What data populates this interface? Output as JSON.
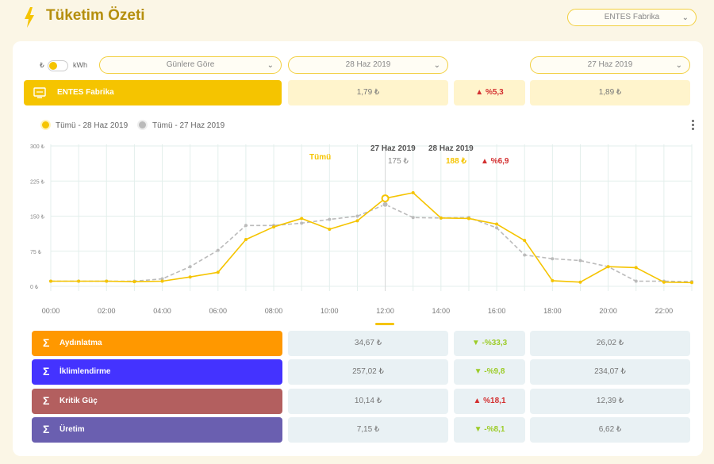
{
  "header": {
    "title": "Tüketim Özeti",
    "facility_select": "ENTES Fabrika"
  },
  "controls": {
    "currency_symbol": "₺",
    "unit_label": "kWh",
    "grouping_select": "Günlere Göre",
    "date_primary": "28 Haz 2019",
    "date_compare": "27 Haz 2019"
  },
  "summary": {
    "name": "ENTES Fabrika",
    "value_primary": "1,79 ₺",
    "change": "▲ %5,3",
    "value_compare": "1,89 ₺"
  },
  "legend": [
    {
      "label": "Tümü - 28 Haz 2019",
      "color": "#f5c400"
    },
    {
      "label": "Tümü - 27 Haz 2019",
      "color": "#bbbbbb"
    }
  ],
  "tooltip": {
    "series_label": "Tümü",
    "date_compare": "27 Haz 2019",
    "date_primary": "28 Haz 2019",
    "value_compare": "175 ₺",
    "value_primary": "188 ₺",
    "change": "▲ %6,9"
  },
  "chart_data": {
    "type": "line",
    "x": [
      "00:00",
      "01:00",
      "02:00",
      "03:00",
      "04:00",
      "05:00",
      "06:00",
      "07:00",
      "08:00",
      "09:00",
      "10:00",
      "11:00",
      "12:00",
      "13:00",
      "14:00",
      "15:00",
      "16:00",
      "17:00",
      "18:00",
      "19:00",
      "20:00",
      "21:00",
      "22:00",
      "23:00"
    ],
    "x_tick_labels": [
      "00:00",
      "02:00",
      "04:00",
      "06:00",
      "08:00",
      "10:00",
      "12:00",
      "14:00",
      "16:00",
      "18:00",
      "20:00",
      "22:00"
    ],
    "y_tick_labels": [
      "0 ₺",
      "75 ₺",
      "150 ₺",
      "225 ₺",
      "300 ₺"
    ],
    "y_ticks": [
      0,
      75,
      150,
      225,
      300
    ],
    "ylim": [
      0,
      300
    ],
    "highlight_x": "12:00",
    "series": [
      {
        "name": "Tümü - 28 Haz 2019",
        "color": "#f5c400",
        "dashed": false,
        "values": [
          11,
          11,
          11,
          10,
          11,
          20,
          30,
          100,
          127,
          145,
          122,
          140,
          188,
          200,
          146,
          145,
          133,
          98,
          12,
          9,
          42,
          40,
          9,
          8
        ]
      },
      {
        "name": "Tümü - 27 Haz 2019",
        "color": "#bbbbbb",
        "dashed": true,
        "values": [
          11,
          11,
          11,
          11,
          16,
          42,
          77,
          130,
          130,
          135,
          143,
          150,
          175,
          147,
          146,
          147,
          125,
          67,
          59,
          55,
          42,
          11,
          11,
          10
        ]
      }
    ]
  },
  "categories": [
    {
      "name": "Aydınlatma",
      "color": "#ff9800",
      "value_primary": "34,67 ₺",
      "change": "▼ -%33,3",
      "direction": "down",
      "value_compare": "26,02 ₺"
    },
    {
      "name": "İklimlendirme",
      "color": "#4433ff",
      "value_primary": "257,02 ₺",
      "change": "▼ -%9,8",
      "direction": "down",
      "value_compare": "234,07 ₺"
    },
    {
      "name": "Kritik Güç",
      "color": "#b35f5f",
      "value_primary": "10,14 ₺",
      "change": "▲ %18,1",
      "direction": "up",
      "value_compare": "12,39 ₺"
    },
    {
      "name": "Üretim",
      "color": "#6a5fb0",
      "value_primary": "7,15 ₺",
      "change": "▼ -%8,1",
      "direction": "down",
      "value_compare": "6,62 ₺"
    }
  ],
  "colors": {
    "accent": "#f5c400",
    "up": "#d32f2f",
    "down": "#9ccc28",
    "panel_yellow": "#fff4cc",
    "panel_blue": "#e9f1f4"
  }
}
